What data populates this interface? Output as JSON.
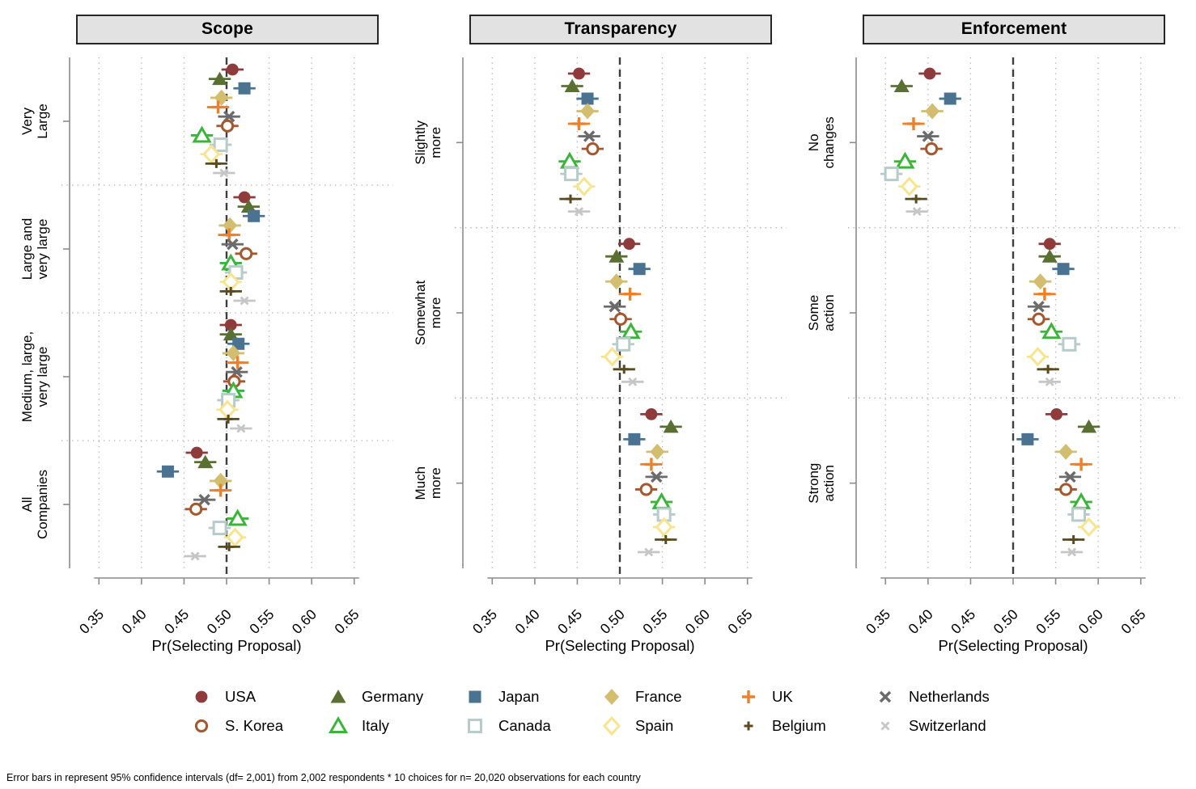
{
  "footnote": "Error bars in represent 95% confidence intervals (df= 2,001) from  2,002 respondents * 10 choices for n= 20,020 observations for each country",
  "country_order": [
    "USA",
    "Germany",
    "Japan",
    "France",
    "UK",
    "Netherlands",
    "S. Korea",
    "Italy",
    "Canada",
    "Spain",
    "Belgium",
    "Switzerland"
  ],
  "markers": {
    "USA": {
      "shape": "circle",
      "fill": true,
      "color": "#8f3b3b"
    },
    "Germany": {
      "shape": "triangle",
      "fill": true,
      "color": "#5a7032"
    },
    "Japan": {
      "shape": "square",
      "fill": true,
      "color": "#4a7391"
    },
    "France": {
      "shape": "diamond",
      "fill": true,
      "color": "#d3bd6f"
    },
    "UK": {
      "shape": "plus",
      "fill": false,
      "color": "#f08028",
      "size": 8,
      "sw": 3.4
    },
    "Netherlands": {
      "shape": "x",
      "fill": false,
      "color": "#6b6b6b",
      "size": 6,
      "sw": 3.4
    },
    "S. Korea": {
      "shape": "circle",
      "fill": false,
      "color": "#a4582e"
    },
    "Italy": {
      "shape": "triangle",
      "fill": false,
      "color": "#3ab53a"
    },
    "Canada": {
      "shape": "square",
      "fill": false,
      "color": "#b7cbca"
    },
    "Spain": {
      "shape": "diamond",
      "fill": false,
      "color": "#f9e48e"
    },
    "Belgium": {
      "shape": "plus",
      "fill": false,
      "color": "#5a4a1f",
      "size": 5.5,
      "sw": 3
    },
    "Switzerland": {
      "shape": "x",
      "fill": false,
      "color": "#c6c6c6",
      "size": 4.5,
      "sw": 2.8
    }
  },
  "colors": {
    "reference_line": "#3d3d3d",
    "grid": "#adadad",
    "axis": "#8a8a8a",
    "title_bg": "#e2e2e2",
    "title_border": "#262626"
  },
  "chart_data": [
    {
      "type": "scatter",
      "title": "Scope",
      "xlabel": "Pr(Selecting Proposal)",
      "xlim": [
        0.325,
        0.675
      ],
      "xticks": [
        0.35,
        0.4,
        0.45,
        0.5,
        0.55,
        0.6,
        0.65
      ],
      "reference_line": 0.5,
      "grid": "dotted",
      "legend_position": "bottom",
      "ci_halfwidth": 0.013,
      "groups": [
        [
          "Very",
          "Large"
        ],
        [
          "Large and",
          "very large"
        ],
        [
          "Medium, large,",
          "very large"
        ],
        [
          "All",
          "Companies"
        ]
      ],
      "series": [
        {
          "name": "USA",
          "values": [
            0.507,
            0.521,
            0.505,
            0.465
          ]
        },
        {
          "name": "Germany",
          "values": [
            0.492,
            0.526,
            0.505,
            0.475
          ]
        },
        {
          "name": "Japan",
          "values": [
            0.521,
            0.532,
            0.514,
            0.431
          ]
        },
        {
          "name": "France",
          "values": [
            0.494,
            0.504,
            0.508,
            0.493
          ]
        },
        {
          "name": "UK",
          "values": [
            0.49,
            0.503,
            0.513,
            0.493
          ]
        },
        {
          "name": "Netherlands",
          "values": [
            0.503,
            0.507,
            0.512,
            0.474
          ]
        },
        {
          "name": "S. Korea",
          "values": [
            0.501,
            0.523,
            0.509,
            0.464
          ]
        },
        {
          "name": "Italy",
          "values": [
            0.471,
            0.505,
            0.508,
            0.513
          ]
        },
        {
          "name": "Canada",
          "values": [
            0.493,
            0.511,
            0.502,
            0.492
          ]
        },
        {
          "name": "Spain",
          "values": [
            0.482,
            0.505,
            0.501,
            0.51
          ]
        },
        {
          "name": "Belgium",
          "values": [
            0.488,
            0.505,
            0.502,
            0.503
          ]
        },
        {
          "name": "Switzerland",
          "values": [
            0.497,
            0.521,
            0.517,
            0.463
          ]
        }
      ]
    },
    {
      "type": "scatter",
      "title": "Transparency",
      "xlabel": "Pr(Selecting Proposal)",
      "xlim": [
        0.325,
        0.675
      ],
      "xticks": [
        0.35,
        0.4,
        0.45,
        0.5,
        0.55,
        0.6,
        0.65
      ],
      "reference_line": 0.5,
      "grid": "dotted",
      "legend_position": "bottom",
      "ci_halfwidth": 0.013,
      "groups": [
        [
          "Slightly",
          "more"
        ],
        [
          "Somewhat",
          "more"
        ],
        [
          "Much",
          "more"
        ]
      ],
      "series": [
        {
          "name": "USA",
          "values": [
            0.452,
            0.511,
            0.537
          ]
        },
        {
          "name": "Germany",
          "values": [
            0.444,
            0.496,
            0.56
          ]
        },
        {
          "name": "Japan",
          "values": [
            0.462,
            0.523,
            0.517
          ]
        },
        {
          "name": "France",
          "values": [
            0.462,
            0.496,
            0.544
          ]
        },
        {
          "name": "UK",
          "values": [
            0.452,
            0.512,
            0.537
          ]
        },
        {
          "name": "Netherlands",
          "values": [
            0.464,
            0.494,
            0.543
          ]
        },
        {
          "name": "S. Korea",
          "values": [
            0.468,
            0.501,
            0.531
          ]
        },
        {
          "name": "Italy",
          "values": [
            0.441,
            0.513,
            0.549
          ]
        },
        {
          "name": "Canada",
          "values": [
            0.443,
            0.504,
            0.552
          ]
        },
        {
          "name": "Spain",
          "values": [
            0.458,
            0.491,
            0.552
          ]
        },
        {
          "name": "Belgium",
          "values": [
            0.442,
            0.505,
            0.554
          ]
        },
        {
          "name": "Switzerland",
          "values": [
            0.452,
            0.515,
            0.534
          ]
        }
      ]
    },
    {
      "type": "scatter",
      "title": "Enforcement",
      "xlabel": "Pr(Selecting Proposal)",
      "xlim": [
        0.325,
        0.675
      ],
      "xticks": [
        0.35,
        0.4,
        0.45,
        0.5,
        0.55,
        0.6,
        0.65
      ],
      "reference_line": 0.5,
      "grid": "dotted",
      "legend_position": "bottom",
      "ci_halfwidth": 0.013,
      "groups": [
        [
          "No",
          "changes"
        ],
        [
          "Some",
          "action"
        ],
        [
          "Strong",
          "action"
        ]
      ],
      "series": [
        {
          "name": "USA",
          "values": [
            0.402,
            0.543,
            0.551
          ]
        },
        {
          "name": "Germany",
          "values": [
            0.369,
            0.543,
            0.589
          ]
        },
        {
          "name": "Japan",
          "values": [
            0.426,
            0.559,
            0.517
          ]
        },
        {
          "name": "France",
          "values": [
            0.405,
            0.532,
            0.562
          ]
        },
        {
          "name": "UK",
          "values": [
            0.383,
            0.537,
            0.58
          ]
        },
        {
          "name": "Netherlands",
          "values": [
            0.4,
            0.53,
            0.567
          ]
        },
        {
          "name": "S. Korea",
          "values": [
            0.404,
            0.53,
            0.562
          ]
        },
        {
          "name": "Italy",
          "values": [
            0.373,
            0.545,
            0.58
          ]
        },
        {
          "name": "Canada",
          "values": [
            0.357,
            0.566,
            0.577
          ]
        },
        {
          "name": "Spain",
          "values": [
            0.378,
            0.529,
            0.589
          ]
        },
        {
          "name": "Belgium",
          "values": [
            0.386,
            0.541,
            0.571
          ]
        },
        {
          "name": "Switzerland",
          "values": [
            0.387,
            0.543,
            0.569
          ]
        }
      ]
    }
  ]
}
